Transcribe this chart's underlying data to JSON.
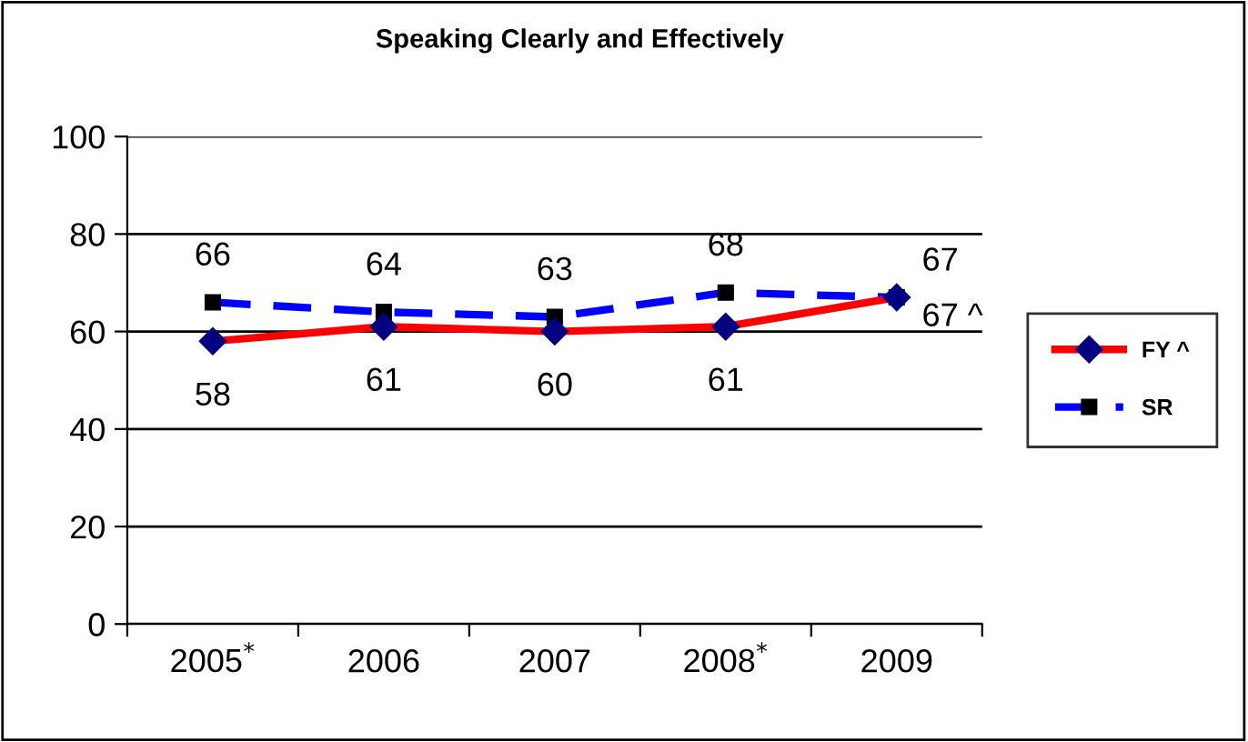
{
  "chart_data": {
    "type": "line",
    "title": "Speaking Clearly and Effectively",
    "categories": [
      "2005$^{*}$",
      "2006",
      "2007",
      "2008$^{*}$",
      "2009"
    ],
    "series": [
      {
        "name": "FY ^",
        "color": "#ff0000",
        "values": [
          58,
          61,
          60,
          61,
          67
        ],
        "marker": "diamond",
        "line_style": "solid",
        "value_labels": [
          "58",
          "61",
          "60",
          "61",
          "67 ^"
        ]
      },
      {
        "name": "SR",
        "color": "#0000ff",
        "values": [
          66,
          64,
          63,
          68,
          67
        ],
        "marker": "square",
        "line_style": "dashed",
        "value_labels": [
          "66",
          "64",
          "63",
          "68",
          "67"
        ]
      }
    ],
    "ylim": [
      0,
      100
    ],
    "yticks": [
      0,
      20,
      40,
      60,
      80,
      100
    ],
    "grid": "y",
    "legend": "right"
  }
}
